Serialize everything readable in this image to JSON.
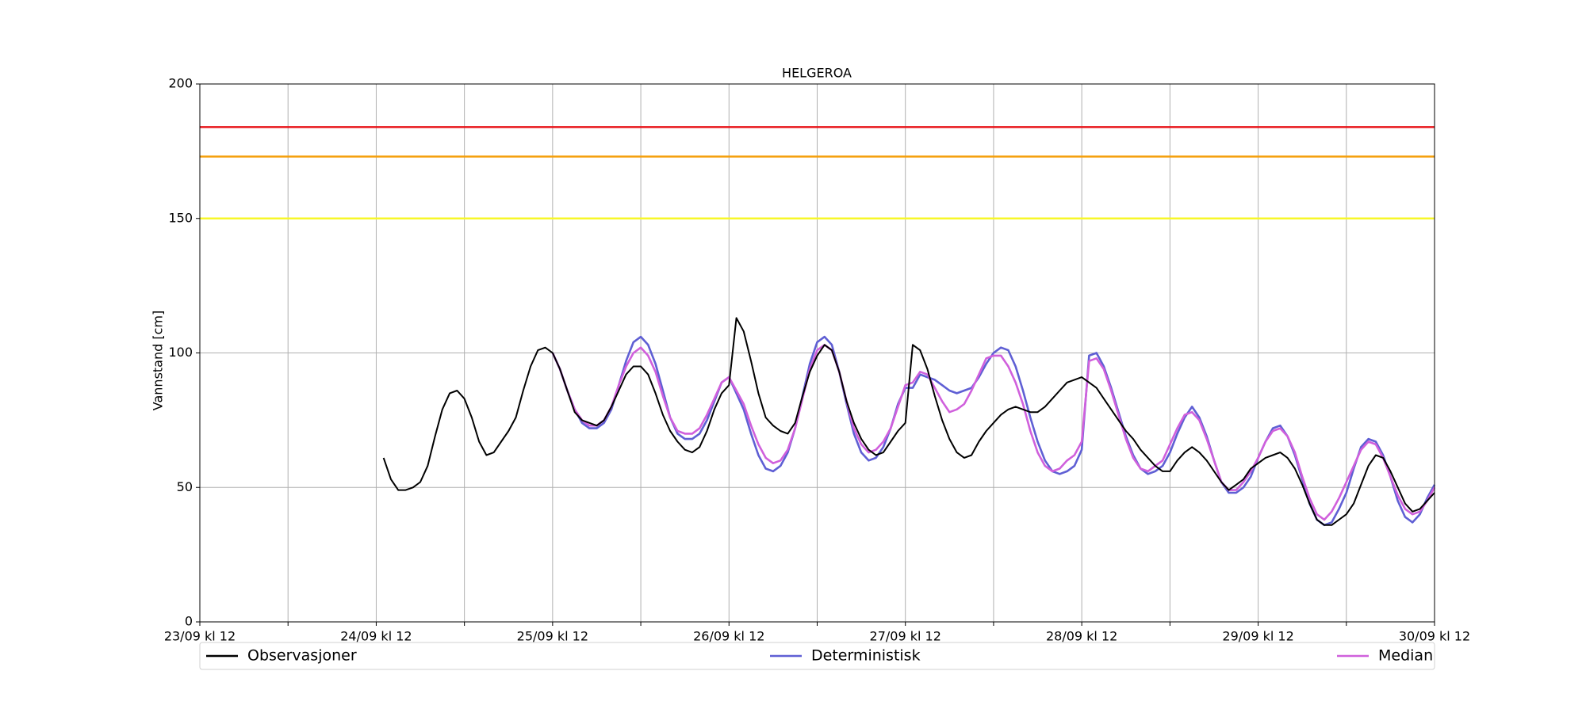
{
  "chart_data": {
    "type": "line",
    "title": "HELGEROA",
    "ylabel": "Vannstand [cm]",
    "xlim": [
      0,
      168
    ],
    "ylim": [
      0,
      200
    ],
    "yticks": [
      0,
      50,
      100,
      150,
      200
    ],
    "xticks": [
      {
        "value": 0,
        "label": "23/09 kl 12"
      },
      {
        "value": 24,
        "label": "24/09 kl 12"
      },
      {
        "value": 48,
        "label": "25/09 kl 12"
      },
      {
        "value": 72,
        "label": "26/09 kl 12"
      },
      {
        "value": 96,
        "label": "27/09 kl 12"
      },
      {
        "value": 120,
        "label": "28/09 kl 12"
      },
      {
        "value": 144,
        "label": "29/09 kl 12"
      },
      {
        "value": 168,
        "label": "30/09 kl 12"
      }
    ],
    "xminorticks": [
      12,
      36,
      60,
      84,
      108,
      132,
      156
    ],
    "grid": true,
    "legend": "below",
    "hlines": [
      {
        "value": 184,
        "color": "#e8141a"
      },
      {
        "value": 173,
        "color": "#f5a00f"
      },
      {
        "value": 150,
        "color": "#f7f72a"
      }
    ],
    "x": [
      25,
      26,
      27,
      28,
      29,
      30,
      31,
      32,
      33,
      34,
      35,
      36,
      37,
      38,
      39,
      40,
      41,
      42,
      43,
      44,
      45,
      46,
      47,
      48,
      49,
      50,
      51,
      52,
      53,
      54,
      55,
      56,
      57,
      58,
      59,
      60,
      61,
      62,
      63,
      64,
      65,
      66,
      67,
      68,
      69,
      70,
      71,
      72,
      73,
      74,
      75,
      76,
      77,
      78,
      79,
      80,
      81,
      82,
      83,
      84,
      85,
      86,
      87,
      88,
      89,
      90,
      91,
      92,
      93,
      94,
      95,
      96,
      97,
      98,
      99,
      100,
      101,
      102,
      103,
      104,
      105,
      106,
      107,
      108,
      109,
      110,
      111,
      112,
      113,
      114,
      115,
      116,
      117,
      118,
      119,
      120,
      121,
      122,
      123,
      124,
      125,
      126,
      127,
      128,
      129,
      130,
      131,
      132,
      133,
      134,
      135,
      136,
      137,
      138,
      139,
      140,
      141,
      142,
      143,
      144,
      145,
      146,
      147,
      148,
      149,
      150,
      151,
      152,
      153,
      154,
      155,
      156,
      157,
      158,
      159,
      160,
      161,
      162,
      163,
      164,
      165,
      166,
      167,
      168
    ],
    "series": [
      {
        "name": "Observasjoner",
        "color": "#000000",
        "values": [
          61,
          53,
          49,
          49,
          50,
          52,
          58,
          69,
          79,
          85,
          86,
          83,
          76,
          67,
          62,
          63,
          67,
          71,
          76,
          86,
          95,
          101,
          102,
          100,
          94,
          86,
          78,
          75,
          74,
          73,
          75,
          80,
          86,
          92,
          95,
          95,
          92,
          85,
          77,
          71,
          67,
          64,
          63,
          65,
          71,
          79,
          85,
          88,
          113,
          108,
          97,
          85,
          76,
          73,
          71,
          70,
          74,
          84,
          93,
          99,
          103,
          101,
          93,
          82,
          74,
          68,
          64,
          62,
          63,
          67,
          71,
          74,
          103,
          101,
          94,
          84,
          75,
          68,
          63,
          61,
          62,
          67,
          71,
          74,
          77,
          79,
          80,
          79,
          78,
          78,
          80,
          83,
          86,
          89,
          90,
          91,
          89,
          87,
          83,
          79,
          75,
          71,
          68,
          64,
          61,
          58,
          56,
          56,
          60,
          63,
          65,
          63,
          60,
          56,
          52,
          49,
          51,
          53,
          57,
          59,
          61,
          62,
          63,
          61,
          57,
          51,
          44,
          38,
          36,
          36,
          38,
          40,
          44,
          51,
          58,
          62,
          61,
          56,
          50,
          44,
          41,
          42,
          45,
          48
        ]
      },
      {
        "name": "Deterministisk",
        "color": "#5f5fd4",
        "values": [
          null,
          null,
          null,
          null,
          null,
          null,
          null,
          null,
          null,
          null,
          null,
          null,
          null,
          null,
          null,
          null,
          null,
          null,
          null,
          null,
          null,
          null,
          null,
          100,
          94,
          86,
          79,
          74,
          72,
          72,
          74,
          79,
          88,
          97,
          104,
          106,
          103,
          96,
          86,
          76,
          70,
          68,
          68,
          70,
          75,
          82,
          89,
          91,
          85,
          79,
          70,
          62,
          57,
          56,
          58,
          63,
          72,
          84,
          96,
          104,
          106,
          103,
          93,
          81,
          70,
          63,
          60,
          61,
          65,
          72,
          81,
          87,
          87,
          92,
          91,
          90,
          88,
          86,
          85,
          86,
          87,
          91,
          96,
          100,
          102,
          101,
          95,
          86,
          76,
          67,
          60,
          56,
          55,
          56,
          58,
          64,
          99,
          100,
          95,
          87,
          78,
          69,
          62,
          57,
          55,
          56,
          58,
          63,
          70,
          76,
          80,
          76,
          69,
          60,
          52,
          48,
          48,
          50,
          54,
          61,
          67,
          72,
          73,
          69,
          62,
          53,
          44,
          38,
          36,
          37,
          42,
          48,
          57,
          65,
          68,
          67,
          62,
          54,
          45,
          39,
          37,
          40,
          46,
          51
        ]
      },
      {
        "name": "Median",
        "color": "#d060dc",
        "values": [
          null,
          null,
          null,
          null,
          null,
          null,
          null,
          null,
          null,
          null,
          null,
          null,
          null,
          null,
          null,
          null,
          null,
          null,
          null,
          null,
          null,
          null,
          null,
          100,
          94,
          86,
          79,
          75,
          73,
          73,
          75,
          80,
          88,
          95,
          100,
          102,
          99,
          93,
          84,
          76,
          71,
          70,
          70,
          72,
          77,
          83,
          89,
          91,
          86,
          81,
          73,
          66,
          61,
          59,
          60,
          64,
          72,
          83,
          94,
          101,
          103,
          101,
          93,
          82,
          72,
          66,
          63,
          64,
          67,
          72,
          80,
          88,
          89,
          93,
          92,
          87,
          82,
          78,
          79,
          81,
          86,
          92,
          98,
          99,
          99,
          95,
          89,
          81,
          71,
          63,
          58,
          56,
          57,
          60,
          62,
          67,
          97,
          98,
          94,
          86,
          77,
          68,
          61,
          57,
          56,
          58,
          60,
          66,
          72,
          77,
          78,
          75,
          68,
          60,
          52,
          49,
          49,
          52,
          56,
          61,
          67,
          71,
          72,
          69,
          63,
          54,
          46,
          40,
          38,
          41,
          46,
          52,
          58,
          64,
          67,
          66,
          61,
          54,
          47,
          42,
          40,
          41,
          45,
          50
        ]
      }
    ]
  }
}
